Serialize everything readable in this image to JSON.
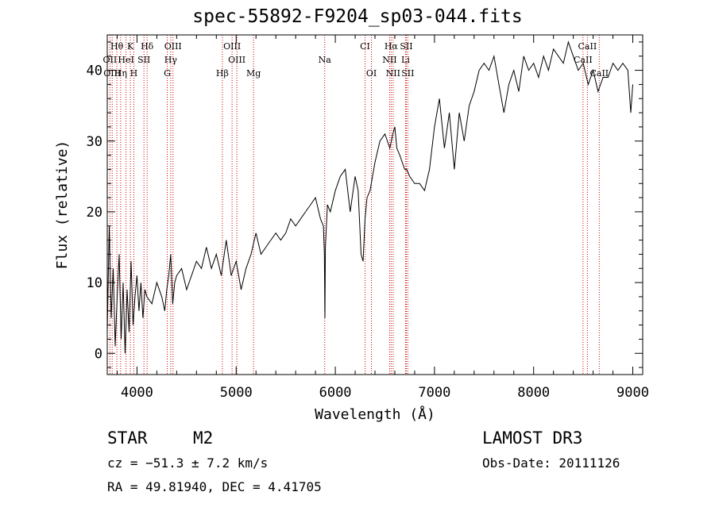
{
  "chart_data": {
    "type": "line",
    "title": "spec-55892-F9204_sp03-044.fits",
    "xlabel": "Wavelength (Å)",
    "ylabel": "Flux (relative)",
    "xlim": [
      3700,
      9100
    ],
    "ylim": [
      -3,
      45
    ],
    "xticks": [
      4000,
      5000,
      6000,
      7000,
      8000,
      9000
    ],
    "yticks": [
      0,
      10,
      20,
      30,
      40
    ],
    "series": [
      {
        "name": "spectrum",
        "x": [
          3700,
          3720,
          3740,
          3760,
          3780,
          3800,
          3820,
          3840,
          3860,
          3880,
          3900,
          3920,
          3940,
          3960,
          3980,
          4000,
          4020,
          4040,
          4060,
          4080,
          4100,
          4150,
          4200,
          4250,
          4280,
          4300,
          4320,
          4340,
          4360,
          4380,
          4400,
          4450,
          4500,
          4550,
          4600,
          4650,
          4700,
          4750,
          4800,
          4850,
          4900,
          4950,
          5000,
          5050,
          5100,
          5150,
          5200,
          5250,
          5300,
          5350,
          5400,
          5450,
          5500,
          5550,
          5600,
          5650,
          5700,
          5750,
          5800,
          5850,
          5880,
          5890,
          5895,
          5900,
          5920,
          5950,
          6000,
          6050,
          6100,
          6150,
          6200,
          6230,
          6260,
          6280,
          6300,
          6320,
          6350,
          6400,
          6450,
          6500,
          6550,
          6580,
          6600,
          6620,
          6650,
          6700,
          6720,
          6750,
          6800,
          6850,
          6900,
          6950,
          7000,
          7050,
          7100,
          7150,
          7200,
          7250,
          7300,
          7350,
          7400,
          7450,
          7500,
          7550,
          7600,
          7650,
          7700,
          7750,
          7800,
          7850,
          7900,
          7950,
          8000,
          8050,
          8100,
          8150,
          8200,
          8250,
          8300,
          8350,
          8400,
          8450,
          8500,
          8550,
          8600,
          8650,
          8700,
          8750,
          8800,
          8850,
          8900,
          8950,
          8980,
          9000
        ],
        "y": [
          3,
          18,
          5,
          12,
          1,
          8,
          14,
          2,
          10,
          0,
          9,
          3,
          13,
          4,
          8,
          11,
          6,
          10,
          5,
          9,
          8,
          7,
          10,
          8,
          6,
          9,
          11,
          14,
          7,
          10,
          11,
          12,
          9,
          11,
          13,
          12,
          15,
          12,
          14,
          11,
          16,
          11,
          13,
          9,
          12,
          14,
          17,
          14,
          15,
          16,
          17,
          16,
          17,
          19,
          18,
          19,
          20,
          21,
          22,
          19,
          18,
          14,
          5,
          15,
          21,
          20,
          23,
          25,
          26,
          20,
          25,
          23,
          14,
          13,
          19,
          22,
          23,
          27,
          30,
          31,
          29,
          31,
          32,
          29,
          28,
          26,
          26,
          25,
          24,
          24,
          23,
          26,
          32,
          36,
          29,
          34,
          26,
          34,
          30,
          35,
          37,
          40,
          41,
          40,
          42,
          38,
          34,
          38,
          40,
          37,
          42,
          40,
          41,
          39,
          42,
          40,
          43,
          42,
          41,
          44,
          42,
          40,
          41,
          38,
          40,
          37,
          39,
          39,
          41,
          40,
          41,
          40,
          34,
          38
        ]
      }
    ],
    "line_labels": [
      {
        "text": "Hθ",
        "row": 0,
        "x": 3797
      },
      {
        "text": "K",
        "row": 0,
        "x": 3933
      },
      {
        "text": "Hδ",
        "row": 0,
        "x": 4102
      },
      {
        "text": "OIII",
        "row": 0,
        "x": 4363
      },
      {
        "text": "OIII",
        "row": 0,
        "x": 4959
      },
      {
        "text": "CI",
        "row": 0,
        "x": 6300
      },
      {
        "text": "Hα",
        "row": 0,
        "x": 6563
      },
      {
        "text": "SII",
        "row": 0,
        "x": 6716
      },
      {
        "text": "CaII",
        "row": 0,
        "x": 8542
      },
      {
        "text": "OII",
        "row": 1,
        "x": 3727
      },
      {
        "text": "HeI",
        "row": 1,
        "x": 3889
      },
      {
        "text": "SII",
        "row": 1,
        "x": 4070
      },
      {
        "text": "Hγ",
        "row": 1,
        "x": 4340
      },
      {
        "text": "OIII",
        "row": 1,
        "x": 5007
      },
      {
        "text": "Na",
        "row": 1,
        "x": 5893
      },
      {
        "text": "NII",
        "row": 1,
        "x": 6548
      },
      {
        "text": "Li",
        "row": 1,
        "x": 6708
      },
      {
        "text": "CaII",
        "row": 1,
        "x": 8498
      },
      {
        "text": "OIII",
        "row": 2,
        "x": 3750
      },
      {
        "text": "Hη",
        "row": 2,
        "x": 3835
      },
      {
        "text": "H",
        "row": 2,
        "x": 3968
      },
      {
        "text": "G",
        "row": 2,
        "x": 4305
      },
      {
        "text": "Hβ",
        "row": 2,
        "x": 4861
      },
      {
        "text": "Mg",
        "row": 2,
        "x": 5175
      },
      {
        "text": "OI",
        "row": 2,
        "x": 6364
      },
      {
        "text": "NII",
        "row": 2,
        "x": 6583
      },
      {
        "text": "SII",
        "row": 2,
        "x": 6731
      },
      {
        "text": "CaII",
        "row": 2,
        "x": 8662
      }
    ],
    "line_marks": [
      3727,
      3750,
      3797,
      3835,
      3889,
      3933,
      3968,
      4070,
      4102,
      4305,
      4340,
      4363,
      4861,
      4959,
      5007,
      5175,
      5893,
      6300,
      6364,
      6548,
      6563,
      6583,
      6708,
      6716,
      6731,
      8498,
      8542,
      8662
    ],
    "colors": {
      "spectrum": "#000000",
      "line_marks": "#cc0000"
    }
  },
  "info": {
    "object_class": "STAR",
    "subclass": "M2",
    "survey": "LAMOST DR3",
    "cz": "cz = −51.3 ± 7.2 km/s",
    "obs_date": "Obs-Date: 20111126",
    "coords": "RA =  49.81940, DEC =   4.41705"
  }
}
